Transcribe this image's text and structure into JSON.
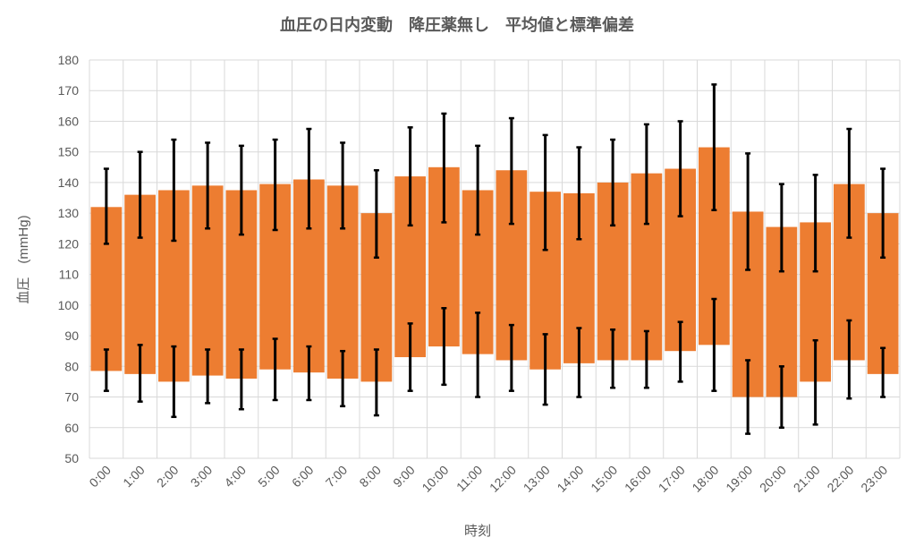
{
  "chart_data": {
    "type": "bar",
    "subtype": "floating-range-with-error-bars",
    "title": "血圧の日内変動　降圧薬無し　平均値と標準偏差",
    "xlabel": "時刻",
    "ylabel": "血圧　(mmHg)",
    "ylim": [
      50,
      180
    ],
    "yticks": [
      50,
      60,
      70,
      80,
      90,
      100,
      110,
      120,
      130,
      140,
      150,
      160,
      170,
      180
    ],
    "grid": true,
    "legend": "none",
    "colors": {
      "bar": "#ed7d31",
      "error_bar": "#000000",
      "grid": "#d9d9d9",
      "text": "#595959"
    },
    "categories": [
      "0:00",
      "1:00",
      "2:00",
      "3:00",
      "4:00",
      "5:00",
      "6:00",
      "7:00",
      "8:00",
      "9:00",
      "10:00",
      "11:00",
      "12:00",
      "13:00",
      "14:00",
      "15:00",
      "16:00",
      "17:00",
      "18:00",
      "19:00",
      "20:00",
      "21:00",
      "22:00",
      "23:00"
    ],
    "series": [
      {
        "role": "systolic_mean",
        "values": [
          132,
          136,
          137.5,
          139,
          137.5,
          139.5,
          141,
          139,
          130,
          142,
          145,
          137.5,
          144,
          137,
          136.5,
          140,
          143,
          144.5,
          151.5,
          130.5,
          125.5,
          127,
          139.5,
          130
        ],
        "sd_high": [
          144.5,
          150,
          154,
          153,
          152,
          154,
          157.5,
          153,
          144,
          158,
          162.5,
          152,
          161,
          155.5,
          151.5,
          154,
          159,
          160,
          172,
          149.5,
          139.5,
          142.5,
          157.5,
          144.5
        ],
        "sd_low": [
          120,
          122,
          121,
          125,
          123,
          124.5,
          125,
          125,
          115.5,
          126,
          127,
          123,
          126.5,
          118,
          121.5,
          126,
          126.5,
          129,
          131,
          111.5,
          111,
          111,
          122,
          115.5
        ]
      },
      {
        "role": "diastolic_mean",
        "values": [
          78.5,
          77.5,
          75,
          77,
          76,
          79,
          78,
          76,
          75,
          83,
          86.5,
          84,
          82,
          79,
          81,
          82,
          82,
          85,
          87,
          70,
          70,
          75,
          82,
          77.5
        ],
        "sd_high": [
          85.5,
          87,
          86.5,
          85.5,
          85.5,
          89,
          86.5,
          85,
          85.5,
          94,
          99,
          97.5,
          93.5,
          90.5,
          92.5,
          92,
          91.5,
          94.5,
          102,
          82,
          80,
          88.5,
          95,
          86
        ],
        "sd_low": [
          72,
          68.5,
          63.5,
          68,
          66,
          69,
          69,
          67,
          64,
          72,
          74,
          70,
          72,
          67.5,
          70,
          73,
          73,
          75,
          72,
          58,
          60,
          61,
          69.5,
          70
        ]
      }
    ]
  }
}
